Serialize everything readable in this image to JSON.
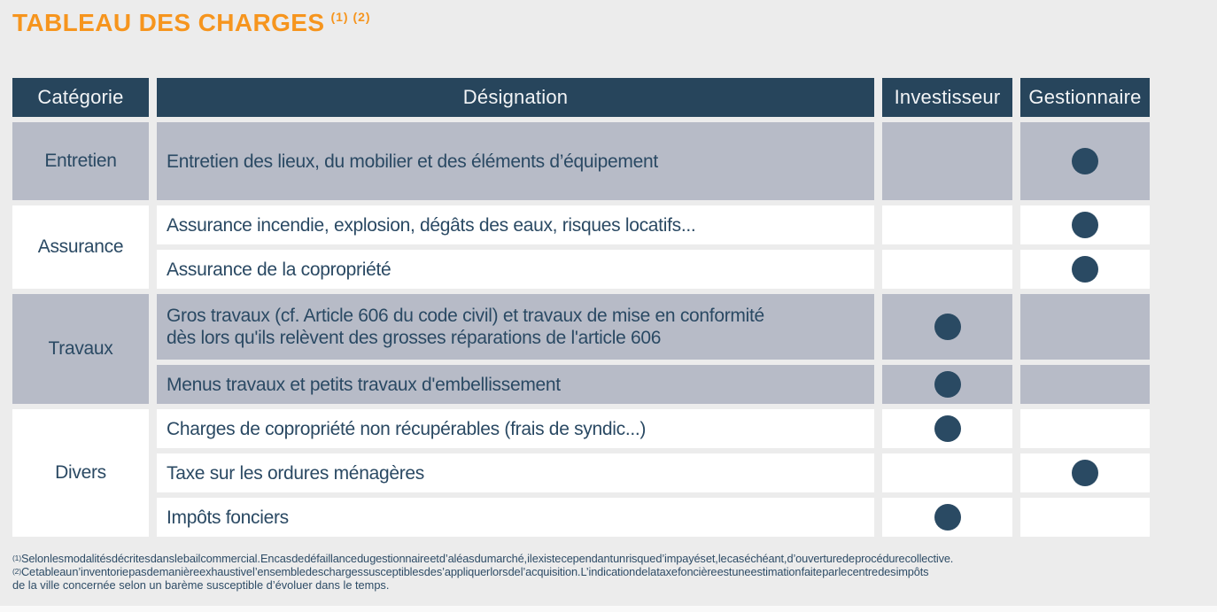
{
  "title": {
    "text": "TABLEAU DES CHARGES",
    "sup": "(1) (2)"
  },
  "colors": {
    "accent_orange": "#f6951e",
    "header_navy": "#27455c",
    "row_gray": "#b7bbc7",
    "row_white": "#ffffff",
    "text_navy": "#2a4963",
    "dot_navy": "#2a4a63",
    "background": "#ececec"
  },
  "table": {
    "headers": {
      "categorie": "Catégorie",
      "designation": "Désignation",
      "investisseur": "Investisseur",
      "gestionnaire": "Gestionnaire"
    },
    "categories": [
      {
        "label": "Entretien"
      },
      {
        "label": "Assurance"
      },
      {
        "label": "Travaux"
      },
      {
        "label": "Divers"
      }
    ],
    "rows": [
      {
        "category": "Entretien",
        "designation": "Entretien des lieux, du mobilier et des éléments d’équipement",
        "investisseur": false,
        "gestionnaire": true
      },
      {
        "category": "Assurance",
        "designation": "Assurance incendie, explosion, dégâts des eaux, risques locatifs...",
        "investisseur": false,
        "gestionnaire": true
      },
      {
        "category": "Assurance",
        "designation": "Assurance de la copropriété",
        "investisseur": false,
        "gestionnaire": true
      },
      {
        "category": "Travaux",
        "designation": "Gros travaux (cf. Article 606 du code civil) et travaux de mise en conformité\ndès lors qu'ils relèvent des grosses réparations de l'article 606",
        "investisseur": true,
        "gestionnaire": false
      },
      {
        "category": "Travaux",
        "designation": "Menus travaux et petits travaux d'embellissement",
        "investisseur": true,
        "gestionnaire": false
      },
      {
        "category": "Divers",
        "designation": "Charges de copropriété non récupérables (frais de syndic...)",
        "investisseur": true,
        "gestionnaire": false
      },
      {
        "category": "Divers",
        "designation": "Taxe sur les ordures ménagères",
        "investisseur": false,
        "gestionnaire": true
      },
      {
        "category": "Divers",
        "designation": "Impôts fonciers",
        "investisseur": true,
        "gestionnaire": false
      }
    ]
  },
  "footnotes": {
    "note1_sup": "(1)",
    "note1_text": "Selon les modalités décrites dans le bail commercial. En cas de défaillance du gestionnaire et d’aléas du marché, il existe cependant un risque d’impayés et, le cas échéant, d’ouverture de procédure collective.",
    "note2_sup": "(2)",
    "note2_line1": "Ce tableau n’inventorie pas de manière exhaustive l’ensemble des charges susceptibles de s’appliquer lors de l’acquisition. L’indication de la taxe foncière est une estimation faite par le centre des impôts",
    "note2_line2": "de la ville concernée selon un barème susceptible d’évoluer dans le temps."
  }
}
